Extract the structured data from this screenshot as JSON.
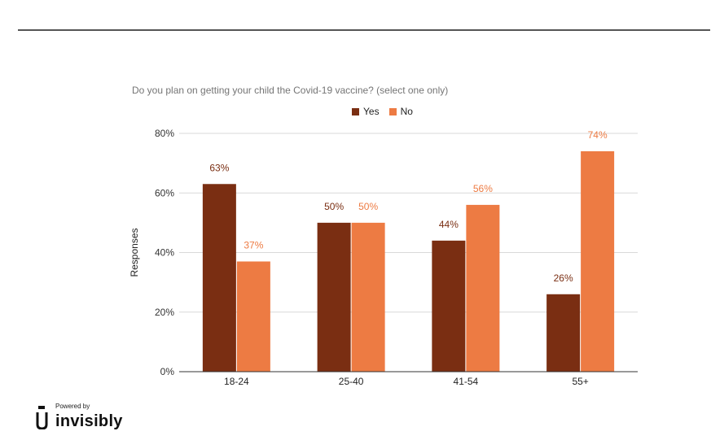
{
  "colors": {
    "yes": "#7a2e12",
    "no": "#ed7b43",
    "grid": "#d9d9d9",
    "axis": "#333333"
  },
  "branding": {
    "powered_by": "Powered by",
    "name": "invisibly",
    "icon": "invisibly-logo-icon"
  },
  "chart_data": {
    "type": "bar",
    "title": "Do you plan on getting your child the Covid-19 vaccine? (select one only)",
    "xlabel": "",
    "ylabel": "Responses",
    "categories": [
      "18-24",
      "25-40",
      "41-54",
      "55+"
    ],
    "series": [
      {
        "name": "Yes",
        "values": [
          63,
          50,
          44,
          26
        ],
        "labels": [
          "63%",
          "50%",
          "44%",
          "26%"
        ]
      },
      {
        "name": "No",
        "values": [
          37,
          50,
          56,
          74
        ],
        "labels": [
          "37%",
          "50%",
          "56%",
          "74%"
        ]
      }
    ],
    "ylim": [
      0,
      80
    ],
    "yticks": [
      "0%",
      "20%",
      "40%",
      "60%",
      "80%"
    ],
    "grid": true,
    "legend_position": "top"
  }
}
